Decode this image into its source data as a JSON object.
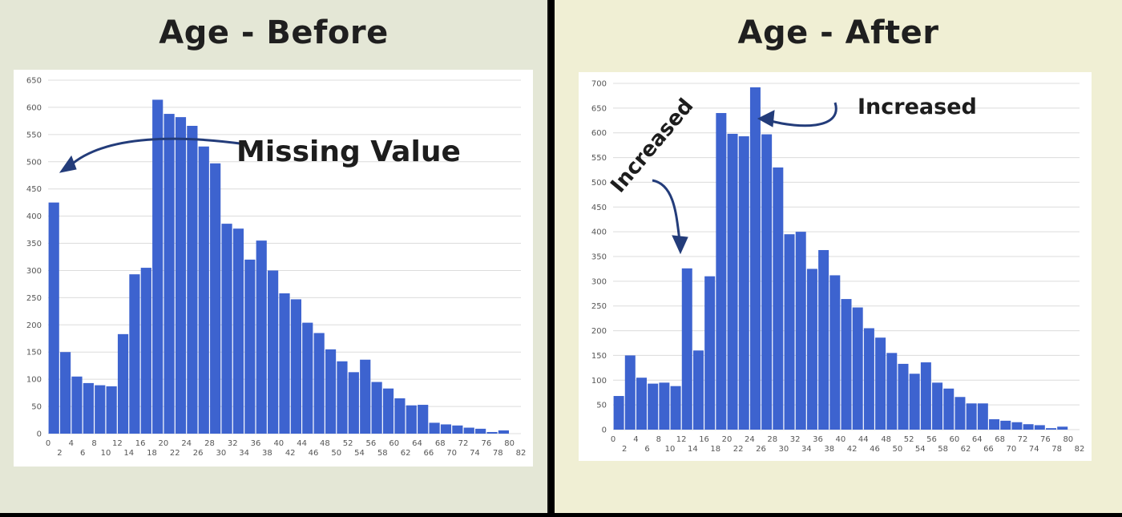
{
  "colors": {
    "bar": "#3d63cf",
    "grid": "#dcdcdc",
    "axis": "#555555",
    "annotation": "#1d1d1d",
    "arrow": "#233c7a",
    "left_bg": "#e4e7d6",
    "right_bg": "#f0efd4"
  },
  "panels": {
    "before_title": "Age - Before",
    "after_title": "Age - After"
  },
  "annotations": {
    "missing_value": "Missing Value",
    "increased_top": "Increased",
    "increased_left": "Increased"
  },
  "chart_data": [
    {
      "type": "bar",
      "title": "Age - Before",
      "xlabel": "",
      "ylabel": "",
      "bin_width": 2,
      "x_start": 0,
      "x_ticks": [
        0,
        2,
        4,
        6,
        8,
        10,
        12,
        14,
        16,
        18,
        20,
        22,
        24,
        26,
        28,
        30,
        32,
        34,
        36,
        38,
        40,
        42,
        44,
        46,
        48,
        50,
        52,
        54,
        56,
        58,
        60,
        62,
        64,
        66,
        68,
        70,
        72,
        74,
        76,
        78,
        80,
        82
      ],
      "ylim": [
        0,
        650
      ],
      "y_ticks": [
        0,
        50,
        100,
        150,
        200,
        250,
        300,
        350,
        400,
        450,
        500,
        550,
        600,
        650
      ],
      "grid": true,
      "values": [
        425,
        150,
        105,
        93,
        89,
        87,
        183,
        293,
        305,
        614,
        588,
        582,
        566,
        528,
        497,
        386,
        377,
        320,
        355,
        300,
        258,
        247,
        204,
        185,
        155,
        133,
        113,
        136,
        95,
        83,
        65,
        52,
        53,
        20,
        17,
        15,
        11,
        9,
        3,
        6
      ]
    },
    {
      "type": "bar",
      "title": "Age - After",
      "xlabel": "",
      "ylabel": "",
      "bin_width": 2,
      "x_start": 0,
      "x_ticks": [
        0,
        2,
        4,
        6,
        8,
        10,
        12,
        14,
        16,
        18,
        20,
        22,
        24,
        26,
        28,
        30,
        32,
        34,
        36,
        38,
        40,
        42,
        44,
        46,
        48,
        50,
        52,
        54,
        56,
        58,
        60,
        62,
        64,
        66,
        68,
        70,
        72,
        74,
        76,
        78,
        80,
        82
      ],
      "ylim": [
        0,
        700
      ],
      "y_ticks": [
        0,
        50,
        100,
        150,
        200,
        250,
        300,
        350,
        400,
        450,
        500,
        550,
        600,
        650,
        700
      ],
      "grid": true,
      "values": [
        68,
        150,
        105,
        93,
        95,
        88,
        326,
        160,
        310,
        640,
        598,
        593,
        692,
        597,
        530,
        395,
        400,
        325,
        363,
        312,
        264,
        247,
        205,
        186,
        155,
        133,
        113,
        136,
        95,
        83,
        66,
        53,
        53,
        21,
        18,
        15,
        11,
        9,
        3,
        6
      ]
    }
  ]
}
